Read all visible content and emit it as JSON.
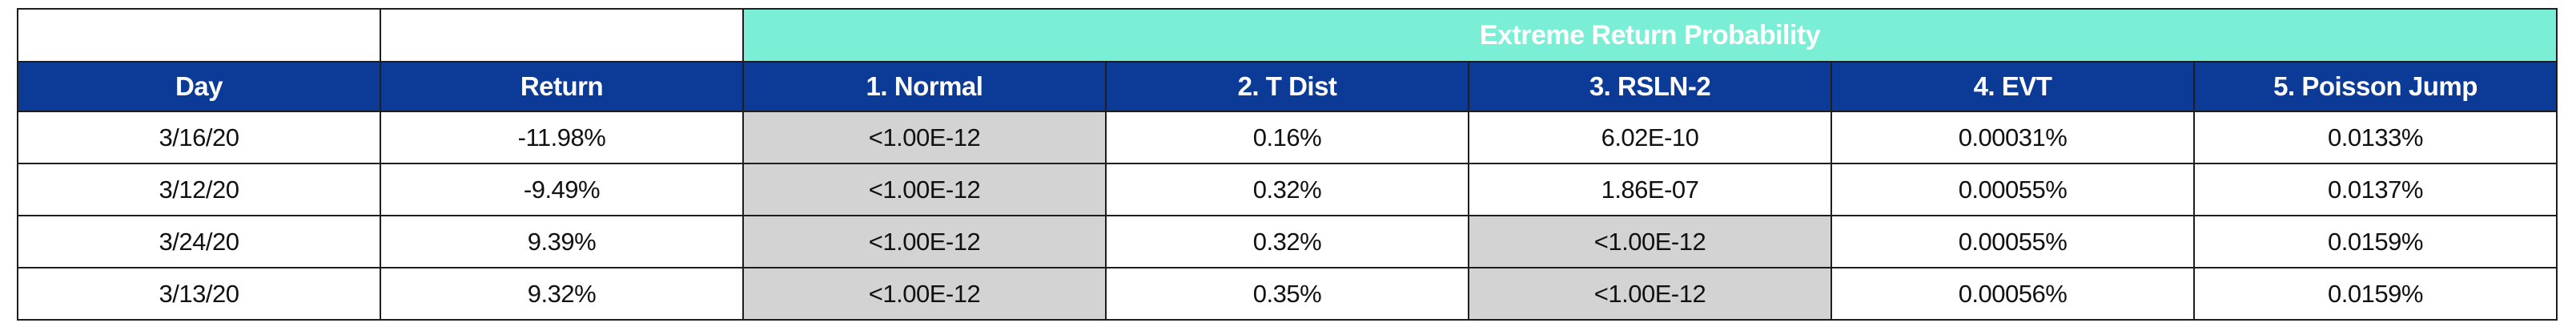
{
  "colors": {
    "band_teal": "#7BEFD6",
    "header_blue": "#0B3A97",
    "highlight_gray": "#D3D3D3",
    "border_dark": "#1E1E1E",
    "text_dark": "#111111"
  },
  "chart_data": {
    "type": "table",
    "title": "Extreme Return Probability",
    "group_header": {
      "label": "Extreme Return Probability",
      "spans_columns": [
        "1. Normal",
        "2. T Dist",
        "3. RSLN-2",
        "4. EVT",
        "5. Poisson Jump"
      ],
      "background": "#7BEFD6"
    },
    "columns": [
      "Day",
      "Return",
      "1. Normal",
      "2. T Dist",
      "3. RSLN-2",
      "4. EVT",
      "5. Poisson Jump"
    ],
    "rows": [
      [
        "3/16/20",
        "-11.98%",
        "<1.00E-12",
        "0.16%",
        "6.02E-10",
        "0.00031%",
        "0.0133%"
      ],
      [
        "3/12/20",
        "-9.49%",
        "<1.00E-12",
        "0.32%",
        "1.86E-07",
        "0.00055%",
        "0.0137%"
      ],
      [
        "3/24/20",
        "9.39%",
        "<1.00E-12",
        "0.32%",
        "<1.00E-12",
        "0.00055%",
        "0.0159%"
      ],
      [
        "3/13/20",
        "9.32%",
        "<1.00E-12",
        "0.35%",
        "<1.00E-12",
        "0.00056%",
        "0.0159%"
      ]
    ],
    "highlighted_gray_cells": [
      [
        0,
        2
      ],
      [
        1,
        2
      ],
      [
        2,
        2
      ],
      [
        3,
        2
      ],
      [
        2,
        4
      ],
      [
        3,
        4
      ]
    ],
    "highlight_color": "#D3D3D3",
    "layout_hints": {
      "header_row_background": "#0B3A97",
      "header_text_color": "#ffffff",
      "grid_borders": true,
      "columns_equal_width": true
    }
  }
}
